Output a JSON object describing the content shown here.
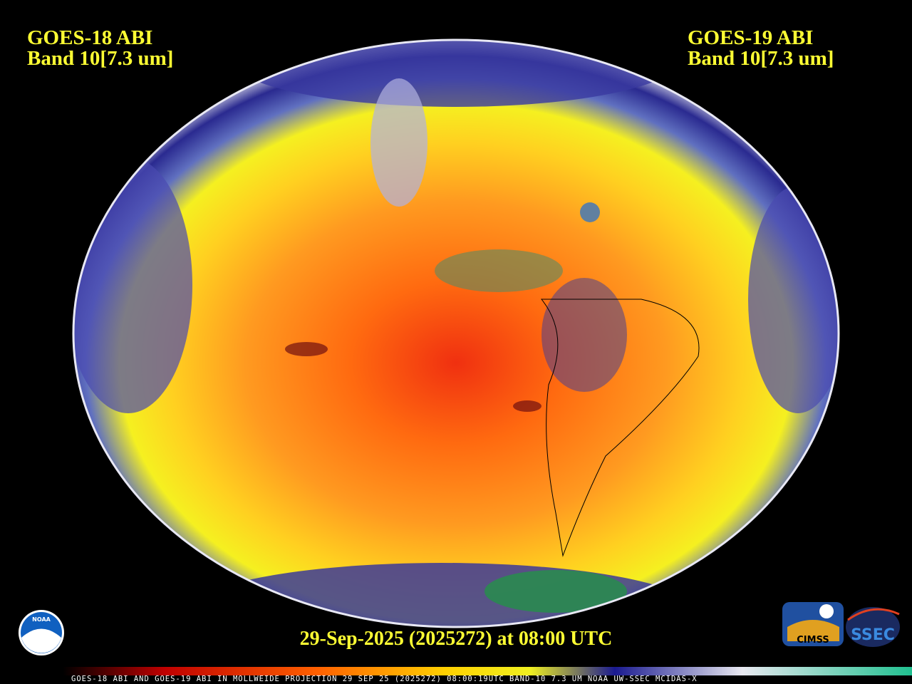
{
  "left_label": {
    "satellite": "GOES-18 ABI",
    "band": "Band 10[7.3 um]"
  },
  "right_label": {
    "satellite": "GOES-19 ABI",
    "band": "Band 10[7.3 um]"
  },
  "timestamp": "29-Sep-2025 (2025272) at 08:00 UTC",
  "colorbar_caption": "GOES-18 ABI AND GOES-19 ABI IN MOLLWEIDE PROJECTION 29 SEP 25 (2025272) 08:00:19UTC BAND-10 7.3 UM NOAA UW-SSEC MCIDAS-X",
  "logos": {
    "noaa": "NOAA",
    "cimss": "CIMSS",
    "ssec": "SSEC"
  }
}
